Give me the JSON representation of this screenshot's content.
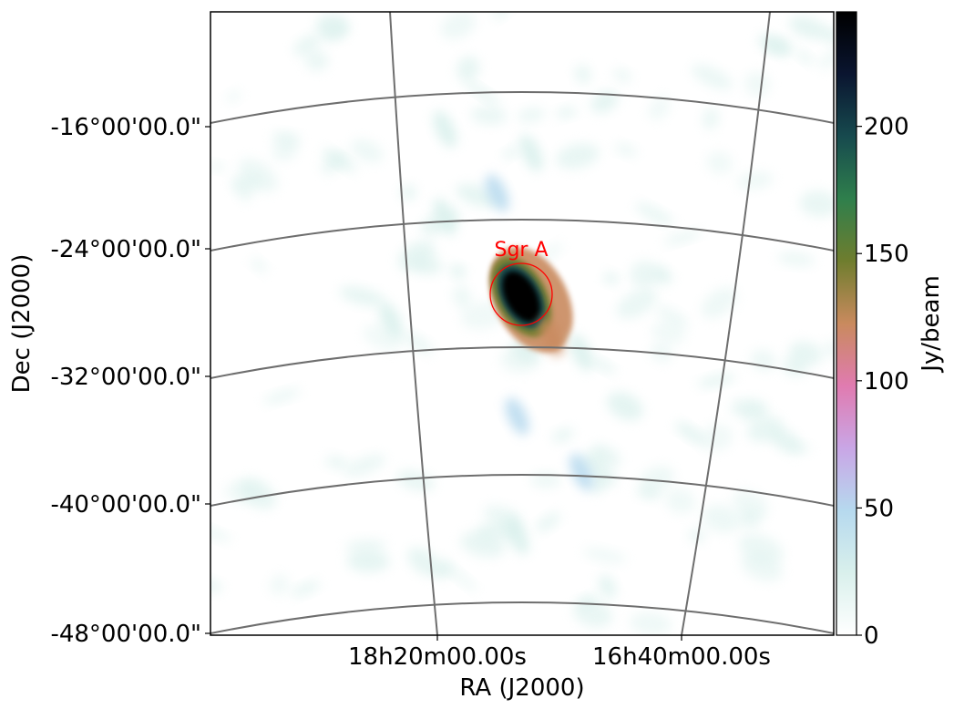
{
  "chart_data": {
    "type": "heatmap",
    "title": "",
    "xlabel": "RA (J2000)",
    "ylabel": "Dec (J2000)",
    "x_ticks": [
      "18h20m00.00s",
      "16h40m00.00s"
    ],
    "y_ticks": [
      "-16°00'00.0\"",
      "-24°00'00.0\"",
      "-32°00'00.0\"",
      "-40°00'00.0\"",
      "-48°00'00.0\""
    ],
    "grid": true,
    "colorbar": {
      "label": "Jy/beam",
      "range": [
        0,
        245
      ],
      "ticks": [
        "0",
        "50",
        "100",
        "150",
        "200"
      ],
      "tick_values": [
        0,
        50,
        100,
        150,
        200
      ],
      "colors": [
        "#ffffff",
        "#d9f0ec",
        "#b6d9ee",
        "#c9a6e6",
        "#e07bb0",
        "#c98a5e",
        "#6f7d2e",
        "#2f7f4c",
        "#174a4e",
        "#0a1530",
        "#000000"
      ]
    },
    "sources": [
      {
        "ra_offset_deg": 0.0,
        "dec": -27.0,
        "peak": 245,
        "label": "Sgr A"
      },
      {
        "ra_offset_deg": -1.2,
        "dec": -20.5,
        "peak": 55
      },
      {
        "ra_offset_deg": 1.5,
        "dec": -29.5,
        "peak": 120
      },
      {
        "ra_offset_deg": -0.2,
        "dec": -34.5,
        "peak": 40
      },
      {
        "ra_offset_deg": 3.0,
        "dec": -38.0,
        "peak": 45
      },
      {
        "ra_offset_deg": -3.8,
        "dec": -16.5,
        "peak": 35
      },
      {
        "ra_offset_deg": -3.8,
        "dec": -22.0,
        "peak": 30
      },
      {
        "ra_offset_deg": -6.5,
        "dec": -28.5,
        "peak": 30
      },
      {
        "ra_offset_deg": 3.0,
        "dec": -30.5,
        "peak": 30
      },
      {
        "ra_offset_deg": -0.2,
        "dec": -42.0,
        "peak": 25
      },
      {
        "ra_offset_deg": 0.5,
        "dec": -18.0,
        "peak": 35
      }
    ],
    "annotations": [
      {
        "text": "Sgr A",
        "type": "circle",
        "color": "#ff0000",
        "dec": -27.0,
        "ra_offset_deg": 0.0
      }
    ]
  }
}
